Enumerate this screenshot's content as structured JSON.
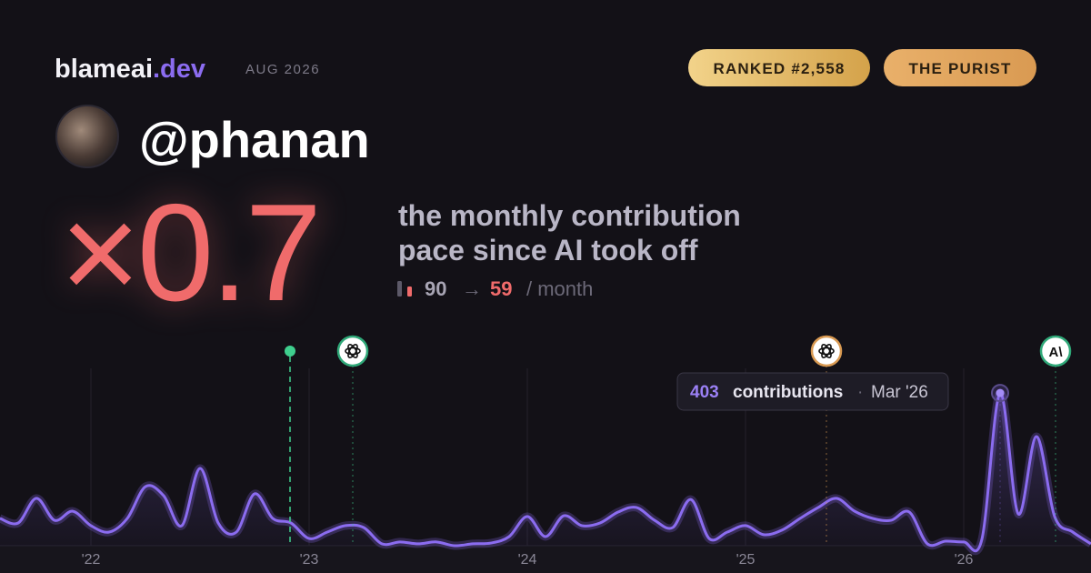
{
  "header": {
    "brand": "blameai",
    "brand_tld": ".dev",
    "date": "AUG 2026",
    "badges": [
      "RANKED #2,558",
      "THE PURIST"
    ]
  },
  "profile": {
    "handle": "@phanan"
  },
  "summary": {
    "multiplier": "×0.7",
    "caption": [
      "the monthly contribution",
      "pace since AI took off"
    ],
    "pace_before": "90",
    "arrow": "→",
    "pace_after": "59",
    "unit": "/ month"
  },
  "markers": {
    "anthropic": "A\\"
  },
  "tooltip": {
    "label": "contributions",
    "separator": "·",
    "date": "Mar '26"
  },
  "chart_data": {
    "type": "area",
    "categories": [
      null,
      null,
      null,
      null,
      null,
      "'22",
      null,
      null,
      null,
      null,
      null,
      null,
      null,
      null,
      null,
      null,
      null,
      "'23",
      null,
      null,
      null,
      null,
      null,
      null,
      null,
      null,
      null,
      null,
      null,
      "'24",
      null,
      null,
      null,
      null,
      null,
      null,
      null,
      null,
      null,
      null,
      null,
      "'25",
      null,
      null,
      null,
      null,
      null,
      null,
      null,
      null,
      null,
      null,
      null,
      "'26",
      null,
      null,
      null,
      null,
      null,
      null,
      null
    ],
    "values": [
      72,
      60,
      125,
      67,
      91,
      53,
      36,
      72,
      156,
      132,
      53,
      204,
      60,
      36,
      137,
      72,
      60,
      19,
      36,
      53,
      48,
      5,
      10,
      5,
      10,
      0,
      5,
      7,
      24,
      77,
      24,
      79,
      53,
      60,
      89,
      101,
      67,
      48,
      122,
      19,
      36,
      53,
      29,
      41,
      72,
      101,
      125,
      91,
      72,
      67,
      89,
      5,
      12,
      10,
      17,
      403,
      84,
      288,
      77,
      36,
      5
    ],
    "color": "#8b6cf0",
    "ylim": [
      0,
      576
    ],
    "grid": true
  }
}
